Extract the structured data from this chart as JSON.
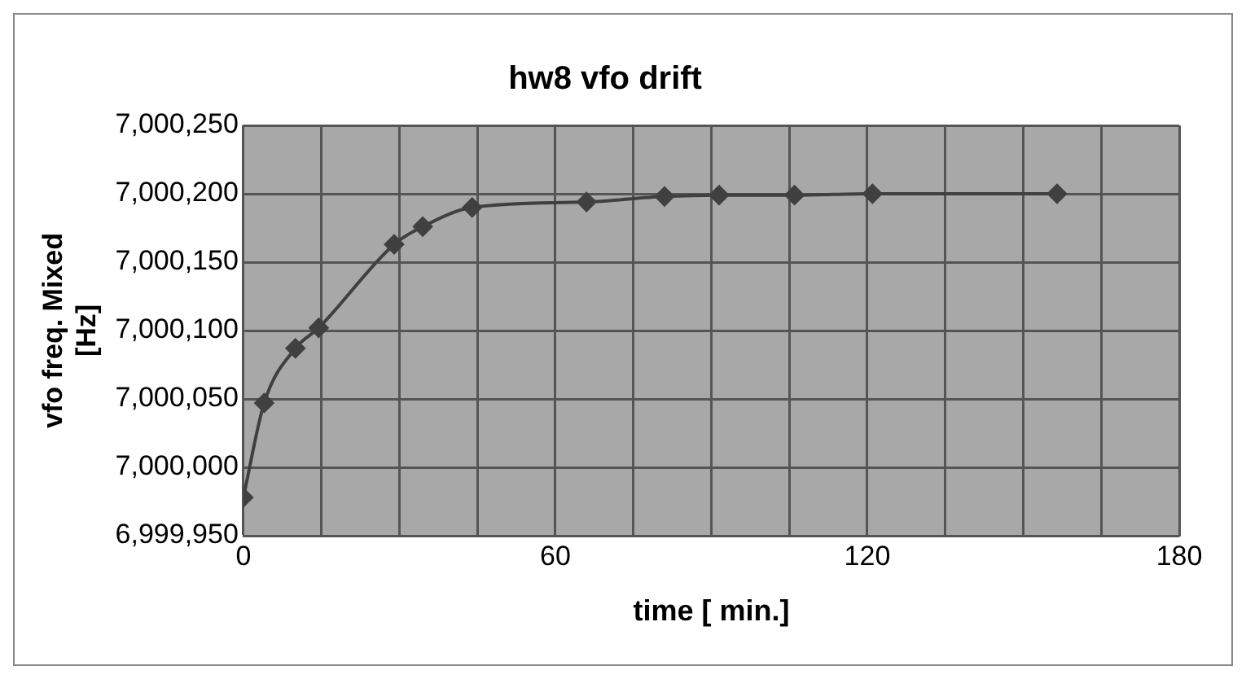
{
  "chart_data": {
    "type": "line",
    "title": "hw8 vfo drift",
    "xlabel": "time [ min.]",
    "ylabel": "vfo freq. Mixed [Hz]",
    "x": [
      0,
      4,
      10,
      14.5,
      29,
      34.5,
      44,
      66,
      81,
      91.5,
      106,
      121,
      156.5
    ],
    "series": [
      {
        "color": "#404040",
        "values": [
          6999978,
          7000047,
          7000087,
          7000102,
          7000163,
          7000176,
          7000190,
          7000194,
          7000198,
          7000199,
          7000199,
          7000200,
          7000200
        ]
      }
    ],
    "xlim": [
      0,
      180
    ],
    "xticks": [
      0,
      {
        "value": 15,
        "label": null
      },
      {
        "value": 30,
        "label": null
      },
      {
        "value": 45,
        "label": null
      },
      60,
      {
        "value": 75,
        "label": null
      },
      {
        "value": 90,
        "label": null
      },
      {
        "value": 105,
        "label": null
      },
      120,
      {
        "value": 135,
        "label": null
      },
      {
        "value": 150,
        "label": null
      },
      {
        "value": 165,
        "label": null
      },
      180
    ],
    "ylim": [
      6999950,
      7000250
    ],
    "yticks": [
      {
        "value": 6999950,
        "label": "6,999,950"
      },
      {
        "value": 7000000,
        "label": "7,000,000"
      },
      {
        "value": 7000050,
        "label": "7,000,050"
      },
      {
        "value": 7000100,
        "label": "7,000,100"
      },
      {
        "value": 7000150,
        "label": "7,000,150"
      },
      {
        "value": 7000200,
        "label": "7,000,200"
      },
      {
        "value": 7000250,
        "label": "7,000,250"
      }
    ],
    "grid": true,
    "legend": false,
    "marker": "diamond",
    "line_style": "solid"
  }
}
